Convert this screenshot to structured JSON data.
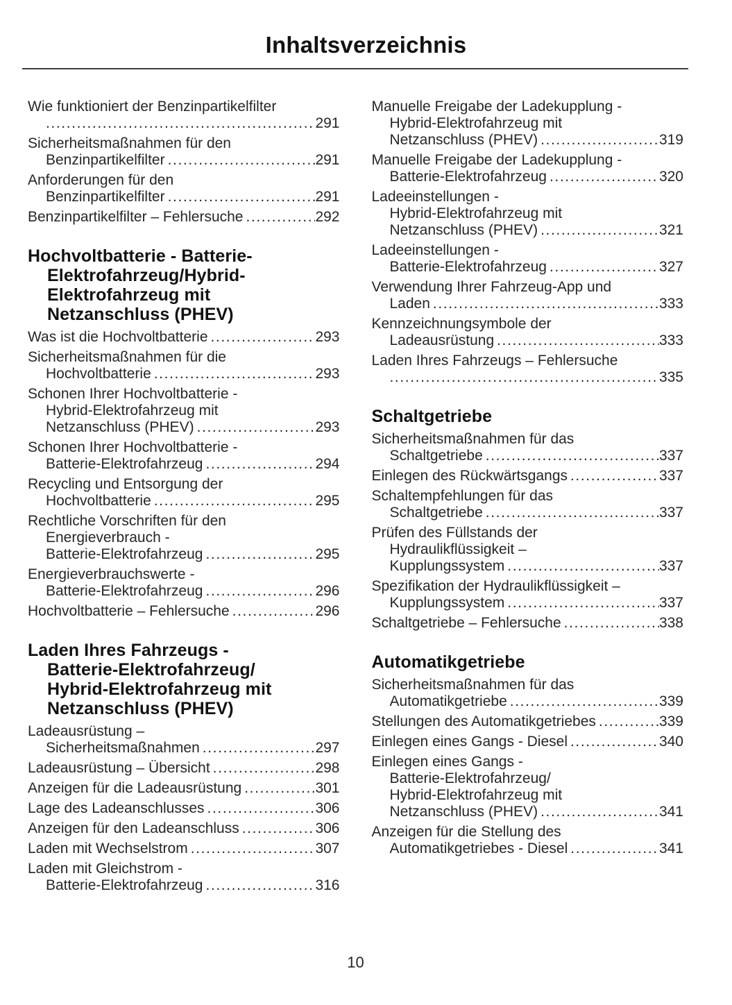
{
  "header": {
    "title": "Inhaltsverzeichnis"
  },
  "footer": {
    "page_number": "10"
  },
  "columns": [
    {
      "blocks": [
        {
          "entries": [
            {
              "lines": [
                "Wie funktioniert der Benzinpartikelfilter",
                ""
              ],
              "page": "291"
            },
            {
              "lines": [
                "Sicherheitsmaßnahmen für den",
                "Benzinpartikelfilter"
              ],
              "page": "291"
            },
            {
              "lines": [
                "Anforderungen für den",
                "Benzinpartikelfilter"
              ],
              "page": "291"
            },
            {
              "lines": [
                "Benzinpartikelfilter – Fehlersuche"
              ],
              "page": "292"
            }
          ]
        },
        {
          "heading": [
            "Hochvoltbatterie - Batterie-",
            "Elektrofahrzeug/Hybrid-",
            "Elektrofahrzeug mit",
            "Netzanschluss (PHEV)"
          ],
          "entries": [
            {
              "lines": [
                "Was ist die Hochvoltbatterie"
              ],
              "page": "293"
            },
            {
              "lines": [
                "Sicherheitsmaßnahmen für die",
                "Hochvoltbatterie"
              ],
              "page": "293"
            },
            {
              "lines": [
                "Schonen Ihrer Hochvoltbatterie -",
                "Hybrid-Elektrofahrzeug mit",
                "Netzanschluss (PHEV)"
              ],
              "page": "293"
            },
            {
              "lines": [
                "Schonen Ihrer Hochvoltbatterie -",
                "Batterie-Elektrofahrzeug"
              ],
              "page": "294"
            },
            {
              "lines": [
                "Recycling und Entsorgung der",
                "Hochvoltbatterie"
              ],
              "page": "295"
            },
            {
              "lines": [
                "Rechtliche Vorschriften für den",
                "Energieverbrauch -",
                "Batterie-Elektrofahrzeug"
              ],
              "page": "295"
            },
            {
              "lines": [
                "Energieverbrauchswerte -",
                "Batterie-Elektrofahrzeug"
              ],
              "page": "296"
            },
            {
              "lines": [
                "Hochvoltbatterie – Fehlersuche"
              ],
              "page": "296"
            }
          ]
        },
        {
          "heading": [
            "Laden Ihres Fahrzeugs -",
            "Batterie-Elektrofahrzeug/",
            "Hybrid-Elektrofahrzeug mit",
            "Netzanschluss (PHEV)"
          ],
          "entries": [
            {
              "lines": [
                "Ladeausrüstung –",
                "Sicherheitsmaßnahmen"
              ],
              "page": "297"
            },
            {
              "lines": [
                "Ladeausrüstung – Übersicht"
              ],
              "page": "298"
            },
            {
              "lines": [
                "Anzeigen für die Ladeausrüstung"
              ],
              "page": "301"
            },
            {
              "lines": [
                "Lage des Ladeanschlusses"
              ],
              "page": "306"
            },
            {
              "lines": [
                "Anzeigen für den Ladeanschluss"
              ],
              "page": "306"
            },
            {
              "lines": [
                "Laden mit Wechselstrom"
              ],
              "page": "307"
            },
            {
              "lines": [
                "Laden mit Gleichstrom -",
                "Batterie-Elektrofahrzeug"
              ],
              "page": "316"
            }
          ]
        }
      ]
    },
    {
      "blocks": [
        {
          "entries": [
            {
              "lines": [
                "Manuelle Freigabe der Ladekupplung -",
                "Hybrid-Elektrofahrzeug mit",
                "Netzanschluss (PHEV)"
              ],
              "page": "319"
            },
            {
              "lines": [
                "Manuelle Freigabe der Ladekupplung -",
                "Batterie-Elektrofahrzeug"
              ],
              "page": "320"
            },
            {
              "lines": [
                "Ladeeinstellungen -",
                "Hybrid-Elektrofahrzeug mit",
                "Netzanschluss (PHEV)"
              ],
              "page": "321"
            },
            {
              "lines": [
                "Ladeeinstellungen -",
                "Batterie-Elektrofahrzeug"
              ],
              "page": "327"
            },
            {
              "lines": [
                "Verwendung Ihrer Fahrzeug-App und",
                "Laden"
              ],
              "page": "333"
            },
            {
              "lines": [
                "Kennzeichnungsymbole der",
                "Ladeausrüstung"
              ],
              "page": "333"
            },
            {
              "lines": [
                "Laden Ihres Fahrzeugs – Fehlersuche",
                ""
              ],
              "page": "335"
            }
          ]
        },
        {
          "heading": [
            "Schaltgetriebe"
          ],
          "entries": [
            {
              "lines": [
                "Sicherheitsmaßnahmen für das",
                "Schaltgetriebe"
              ],
              "page": "337"
            },
            {
              "lines": [
                "Einlegen des Rückwärtsgangs"
              ],
              "page": "337"
            },
            {
              "lines": [
                "Schaltempfehlungen für das",
                "Schaltgetriebe"
              ],
              "page": "337"
            },
            {
              "lines": [
                "Prüfen des Füllstands der",
                "Hydraulikflüssigkeit –",
                "Kupplungssystem"
              ],
              "page": "337"
            },
            {
              "lines": [
                "Spezifikation der Hydraulikflüssigkeit –",
                "Kupplungssystem"
              ],
              "page": "337"
            },
            {
              "lines": [
                "Schaltgetriebe – Fehlersuche"
              ],
              "page": "338"
            }
          ]
        },
        {
          "heading": [
            "Automatikgetriebe"
          ],
          "entries": [
            {
              "lines": [
                "Sicherheitsmaßnahmen für das",
                "Automatikgetriebe"
              ],
              "page": "339"
            },
            {
              "lines": [
                "Stellungen des Automatikgetriebes"
              ],
              "page": "339"
            },
            {
              "lines": [
                "Einlegen eines Gangs - Diesel"
              ],
              "page": "340"
            },
            {
              "lines": [
                "Einlegen eines Gangs -",
                "Batterie-Elektrofahrzeug/",
                "Hybrid-Elektrofahrzeug mit",
                "Netzanschluss (PHEV)"
              ],
              "page": "341"
            },
            {
              "lines": [
                "Anzeigen für die Stellung des",
                "Automatikgetriebes - Diesel"
              ],
              "page": "341"
            }
          ]
        }
      ]
    }
  ]
}
